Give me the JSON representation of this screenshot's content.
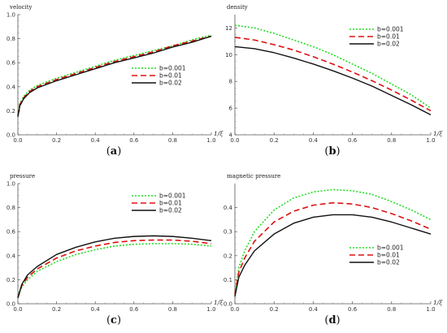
{
  "chart_data": [
    {
      "id": "a",
      "type": "line",
      "caption_letter": "a",
      "ylabel": "velocity",
      "xlabel": "1/ξ",
      "xlim": [
        0,
        1
      ],
      "ylim": [
        0,
        1
      ],
      "xticks": [
        "0.0",
        "0.2",
        "0.4",
        "0.6",
        "0.8",
        "1.0"
      ],
      "yticks": [
        "0.0",
        "0.2",
        "0.4",
        "0.6",
        "0.8",
        "1.0"
      ],
      "legend_position": "right",
      "series": [
        {
          "name": "b=0.001",
          "color": "#22dd22",
          "style": "dotted",
          "x": [
            0,
            0.01,
            0.03,
            0.06,
            0.1,
            0.2,
            0.3,
            0.4,
            0.5,
            0.6,
            0.7,
            0.8,
            0.9,
            1.0
          ],
          "y": [
            0.17,
            0.26,
            0.32,
            0.37,
            0.41,
            0.47,
            0.52,
            0.57,
            0.62,
            0.66,
            0.7,
            0.74,
            0.79,
            0.83
          ]
        },
        {
          "name": "b=0.01",
          "color": "#dd1111",
          "style": "dashed",
          "x": [
            0,
            0.01,
            0.03,
            0.06,
            0.1,
            0.2,
            0.3,
            0.4,
            0.5,
            0.6,
            0.7,
            0.8,
            0.9,
            1.0
          ],
          "y": [
            0.16,
            0.25,
            0.31,
            0.36,
            0.4,
            0.46,
            0.51,
            0.56,
            0.61,
            0.65,
            0.69,
            0.74,
            0.78,
            0.82
          ]
        },
        {
          "name": "b=0.02",
          "color": "#111111",
          "style": "solid",
          "x": [
            0,
            0.01,
            0.03,
            0.06,
            0.1,
            0.2,
            0.3,
            0.4,
            0.5,
            0.6,
            0.7,
            0.8,
            0.9,
            1.0
          ],
          "y": [
            0.15,
            0.24,
            0.3,
            0.35,
            0.39,
            0.45,
            0.5,
            0.55,
            0.6,
            0.64,
            0.68,
            0.73,
            0.77,
            0.82
          ]
        }
      ]
    },
    {
      "id": "b",
      "type": "line",
      "caption_letter": "b",
      "ylabel": "density",
      "xlabel": "1/ξ",
      "xlim": [
        0,
        1
      ],
      "ylim": [
        4,
        13
      ],
      "xticks": [
        "0.0",
        "0.2",
        "0.4",
        "0.6",
        "0.8",
        "1.0"
      ],
      "yticks": [
        "4",
        "6",
        "8",
        "10",
        "12"
      ],
      "legend_position": "top-right",
      "series": [
        {
          "name": "b=0.001",
          "color": "#22dd22",
          "style": "dotted",
          "x": [
            0,
            0.1,
            0.2,
            0.3,
            0.4,
            0.5,
            0.6,
            0.7,
            0.8,
            0.9,
            1.0
          ],
          "y": [
            12.2,
            12.0,
            11.6,
            11.1,
            10.6,
            10.0,
            9.3,
            8.6,
            7.8,
            7.0,
            6.0
          ]
        },
        {
          "name": "b=0.01",
          "color": "#dd1111",
          "style": "dashed",
          "x": [
            0,
            0.1,
            0.2,
            0.3,
            0.4,
            0.5,
            0.6,
            0.7,
            0.8,
            0.9,
            1.0
          ],
          "y": [
            11.3,
            11.1,
            10.75,
            10.35,
            9.85,
            9.3,
            8.7,
            8.05,
            7.35,
            6.6,
            5.8
          ]
        },
        {
          "name": "b=0.02",
          "color": "#111111",
          "style": "solid",
          "x": [
            0,
            0.1,
            0.2,
            0.3,
            0.4,
            0.5,
            0.6,
            0.7,
            0.8,
            0.9,
            1.0
          ],
          "y": [
            10.6,
            10.45,
            10.15,
            9.75,
            9.3,
            8.8,
            8.25,
            7.65,
            6.95,
            6.25,
            5.5
          ]
        }
      ]
    },
    {
      "id": "c",
      "type": "line",
      "caption_letter": "c",
      "ylabel": "pressure",
      "xlabel": "1/ξ",
      "xlim": [
        0,
        1
      ],
      "ylim": [
        0,
        1
      ],
      "xticks": [
        "0.0",
        "0.2",
        "0.4",
        "0.6",
        "0.8",
        "1.0"
      ],
      "yticks": [
        "0.0",
        "0.2",
        "0.4",
        "0.6",
        "0.8",
        "1.0"
      ],
      "legend_position": "top-right",
      "series": [
        {
          "name": "b=0.001",
          "color": "#22dd22",
          "style": "dotted",
          "x": [
            0,
            0.02,
            0.05,
            0.1,
            0.2,
            0.3,
            0.4,
            0.5,
            0.6,
            0.7,
            0.8,
            0.9,
            1.0
          ],
          "y": [
            0.05,
            0.14,
            0.2,
            0.27,
            0.35,
            0.41,
            0.45,
            0.48,
            0.495,
            0.5,
            0.5,
            0.495,
            0.48
          ]
        },
        {
          "name": "b=0.01",
          "color": "#dd1111",
          "style": "dashed",
          "x": [
            0,
            0.02,
            0.05,
            0.1,
            0.2,
            0.3,
            0.4,
            0.5,
            0.6,
            0.7,
            0.8,
            0.9,
            1.0
          ],
          "y": [
            0.05,
            0.15,
            0.22,
            0.29,
            0.38,
            0.44,
            0.48,
            0.51,
            0.525,
            0.53,
            0.53,
            0.52,
            0.5
          ]
        },
        {
          "name": "b=0.02",
          "color": "#111111",
          "style": "solid",
          "x": [
            0,
            0.02,
            0.05,
            0.1,
            0.2,
            0.3,
            0.4,
            0.5,
            0.6,
            0.7,
            0.8,
            0.9,
            1.0
          ],
          "y": [
            0.05,
            0.16,
            0.24,
            0.31,
            0.41,
            0.47,
            0.515,
            0.545,
            0.56,
            0.565,
            0.56,
            0.545,
            0.525
          ]
        }
      ]
    },
    {
      "id": "d",
      "type": "line",
      "caption_letter": "d",
      "ylabel": "magnetic pressure",
      "xlabel": "1/ξ",
      "xlim": [
        0,
        1
      ],
      "ylim": [
        0,
        0.5
      ],
      "xticks": [
        "0.0",
        "0.2",
        "0.4",
        "0.6",
        "0.8",
        "1.0"
      ],
      "yticks": [
        "0.0",
        "0.1",
        "0.2",
        "0.3",
        "0.4"
      ],
      "legend_position": "bottom-right",
      "series": [
        {
          "name": "b=0.001",
          "color": "#22dd22",
          "style": "dotted",
          "x": [
            0,
            0.02,
            0.05,
            0.1,
            0.2,
            0.3,
            0.4,
            0.5,
            0.6,
            0.7,
            0.8,
            0.9,
            1.0
          ],
          "y": [
            0.04,
            0.15,
            0.22,
            0.3,
            0.39,
            0.44,
            0.465,
            0.475,
            0.47,
            0.455,
            0.425,
            0.39,
            0.35
          ]
        },
        {
          "name": "b=0.01",
          "color": "#dd1111",
          "style": "dashed",
          "x": [
            0,
            0.02,
            0.05,
            0.1,
            0.2,
            0.3,
            0.4,
            0.5,
            0.6,
            0.7,
            0.8,
            0.9,
            1.0
          ],
          "y": [
            0.04,
            0.13,
            0.19,
            0.26,
            0.34,
            0.385,
            0.41,
            0.42,
            0.415,
            0.4,
            0.375,
            0.345,
            0.31
          ]
        },
        {
          "name": "b=0.02",
          "color": "#111111",
          "style": "solid",
          "x": [
            0,
            0.02,
            0.05,
            0.1,
            0.2,
            0.3,
            0.4,
            0.5,
            0.6,
            0.7,
            0.8,
            0.9,
            1.0
          ],
          "y": [
            0.03,
            0.11,
            0.16,
            0.22,
            0.29,
            0.335,
            0.36,
            0.37,
            0.37,
            0.36,
            0.34,
            0.315,
            0.29
          ]
        }
      ]
    }
  ]
}
